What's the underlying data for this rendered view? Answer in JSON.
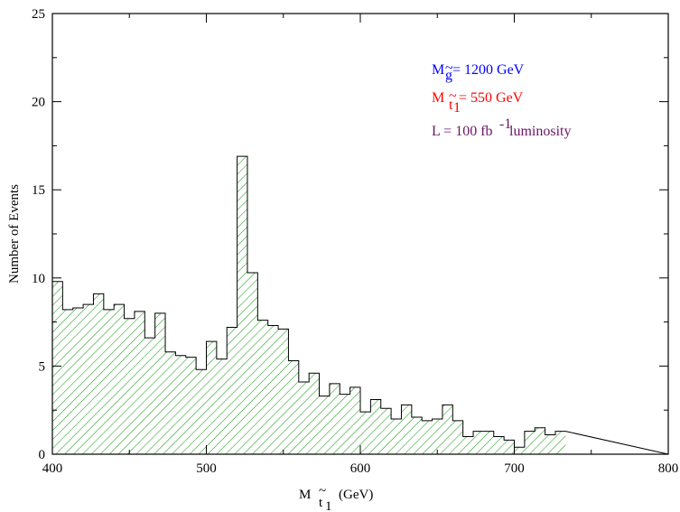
{
  "chart_data": {
    "type": "bar",
    "style": "step-histogram",
    "x": {
      "label_main": "M",
      "label_sub_top": "~",
      "label_sub": "t",
      "label_subsub": "1",
      "label_unit": "(GeV)",
      "lim": [
        400,
        800
      ],
      "ticks": [
        400,
        500,
        600,
        700,
        800
      ]
    },
    "y": {
      "label": "Number of Events",
      "lim": [
        0,
        25
      ],
      "ticks": [
        0,
        5,
        10,
        15,
        20,
        25
      ]
    },
    "bin_width": 6.6667,
    "bin_start": 400,
    "values": [
      9.8,
      8.2,
      8.3,
      8.5,
      9.1,
      8.2,
      8.5,
      7.7,
      8.1,
      6.6,
      8.0,
      5.8,
      5.6,
      5.5,
      4.8,
      6.4,
      5.4,
      7.2,
      16.9,
      10.3,
      7.6,
      7.3,
      7.1,
      5.3,
      4.1,
      4.6,
      3.3,
      4.0,
      3.4,
      3.8,
      2.4,
      3.1,
      2.6,
      2.0,
      2.8,
      2.1,
      1.9,
      2.0,
      2.8,
      1.9,
      1.0,
      1.3,
      1.3,
      1.0,
      0.8,
      0.4,
      1.3,
      1.5,
      1.1,
      1.3
    ],
    "fill_color": "#1a9b1a",
    "outline_color": "#000000",
    "annotations": [
      {
        "main": "M",
        "sub": "g",
        "sub_top": "~",
        "rest": " = 1200 GeV",
        "color": "#0000ff"
      },
      {
        "main": "M",
        "sub": "t",
        "sub_top": "~",
        "subsub": "1",
        "rest": " = 550 GeV",
        "color": "#ff0000"
      },
      {
        "main": "L = 100 fb",
        "sup": "-1",
        "rest": " luminosity",
        "color": "#6b1466"
      }
    ]
  }
}
